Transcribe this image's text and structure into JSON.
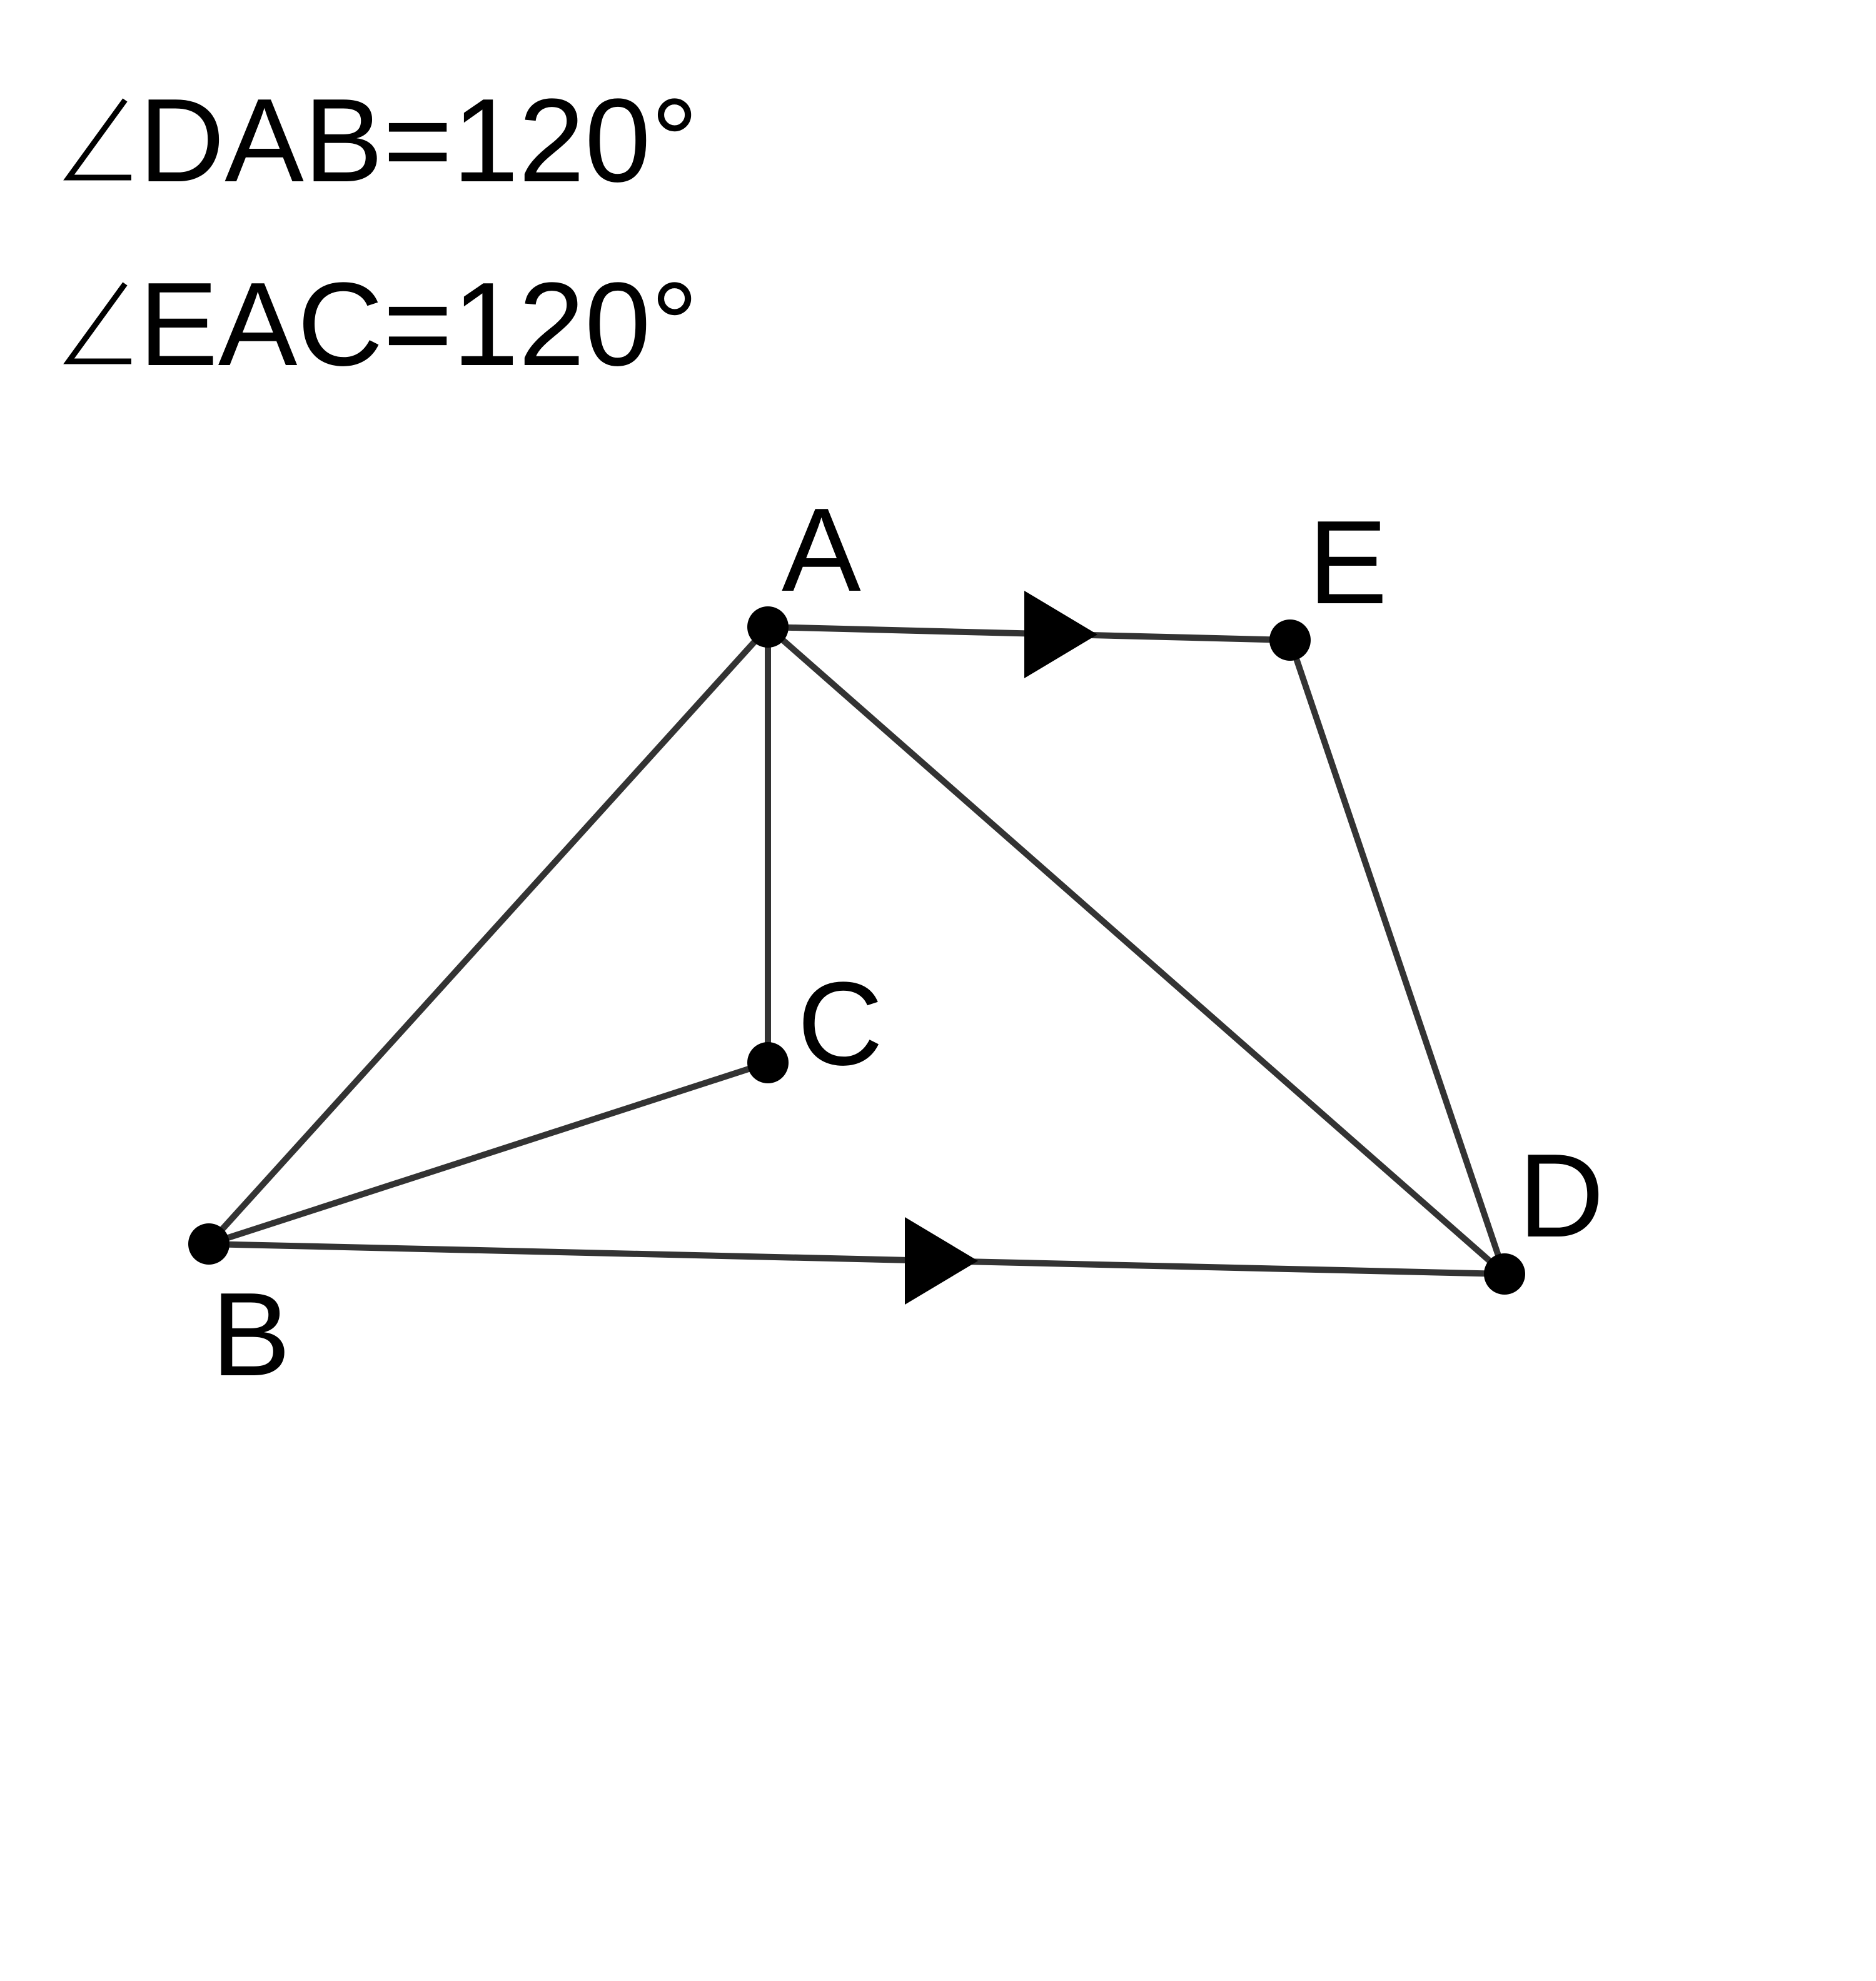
{
  "angle_labels": [
    {
      "symbol": "∠",
      "text": "DAB=120°"
    },
    {
      "symbol": "∠",
      "text": "EAC=120°"
    }
  ],
  "points": {
    "A": "A",
    "B": "B",
    "C": "C",
    "D": "D",
    "E": "E"
  },
  "segments": [
    "AB",
    "AC",
    "AD",
    "AE",
    "BC",
    "BD",
    "DE"
  ],
  "parallel_marks": [
    "AE",
    "BD"
  ],
  "colors": {
    "line": "#333333",
    "point": "#000000",
    "text": "#000000",
    "background": "#ffffff"
  }
}
